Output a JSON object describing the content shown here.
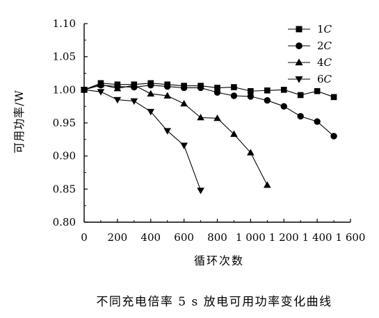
{
  "chart_data": {
    "type": "line",
    "caption": "不同充电倍率 5 s 放电可用功率变化曲线",
    "xlabel": "循环次数",
    "ylabel": "可用功率/W",
    "xlim": [
      0,
      1600
    ],
    "ylim": [
      0.8,
      1.1
    ],
    "xticks": [
      0,
      200,
      400,
      600,
      800,
      1000,
      1200,
      1400,
      1600
    ],
    "xtick_labels": [
      "0",
      "200",
      "400",
      "600",
      "800",
      "1 000",
      "1 200",
      "1 400",
      "1 600"
    ],
    "yticks": [
      0.8,
      0.85,
      0.9,
      0.95,
      1.0,
      1.05,
      1.1
    ],
    "ytick_labels": [
      "0.80",
      "0.85",
      "0.90",
      "0.95",
      "1.00",
      "1.05",
      "1.10"
    ],
    "legend_position": "top-right",
    "grid": false,
    "series": [
      {
        "name": "1C",
        "label_num": "1",
        "label_unit": "C",
        "marker": "square",
        "x": [
          0,
          100,
          200,
          300,
          400,
          500,
          600,
          700,
          800,
          900,
          1000,
          1100,
          1200,
          1300,
          1400,
          1500
        ],
        "y": [
          1.0,
          1.01,
          1.008,
          1.008,
          1.01,
          1.008,
          1.006,
          1.006,
          1.003,
          1.004,
          0.998,
          0.999,
          1.0,
          0.992,
          0.998,
          0.989
        ]
      },
      {
        "name": "2C",
        "label_num": "2",
        "label_unit": "C",
        "marker": "circle",
        "x": [
          0,
          100,
          200,
          300,
          400,
          500,
          600,
          700,
          800,
          900,
          1000,
          1100,
          1200,
          1300,
          1400,
          1500
        ],
        "y": [
          1.0,
          1.007,
          1.005,
          1.004,
          1.007,
          1.005,
          1.003,
          1.003,
          0.996,
          0.991,
          0.99,
          0.984,
          0.975,
          0.96,
          0.952,
          0.93
        ]
      },
      {
        "name": "4C",
        "label_num": "4",
        "label_unit": "C",
        "marker": "triangle-up",
        "x": [
          0,
          100,
          200,
          300,
          400,
          500,
          600,
          700,
          800,
          900,
          1000,
          1100
        ],
        "y": [
          1.0,
          1.008,
          1.002,
          1.007,
          0.994,
          0.991,
          0.979,
          0.958,
          0.957,
          0.933,
          0.905,
          0.856
        ]
      },
      {
        "name": "6C",
        "label_num": "6",
        "label_unit": "C",
        "marker": "triangle-down",
        "x": [
          0,
          100,
          200,
          300,
          400,
          500,
          600,
          700
        ],
        "y": [
          1.0,
          0.997,
          0.985,
          0.983,
          0.967,
          0.938,
          0.916,
          0.848
        ]
      }
    ]
  }
}
